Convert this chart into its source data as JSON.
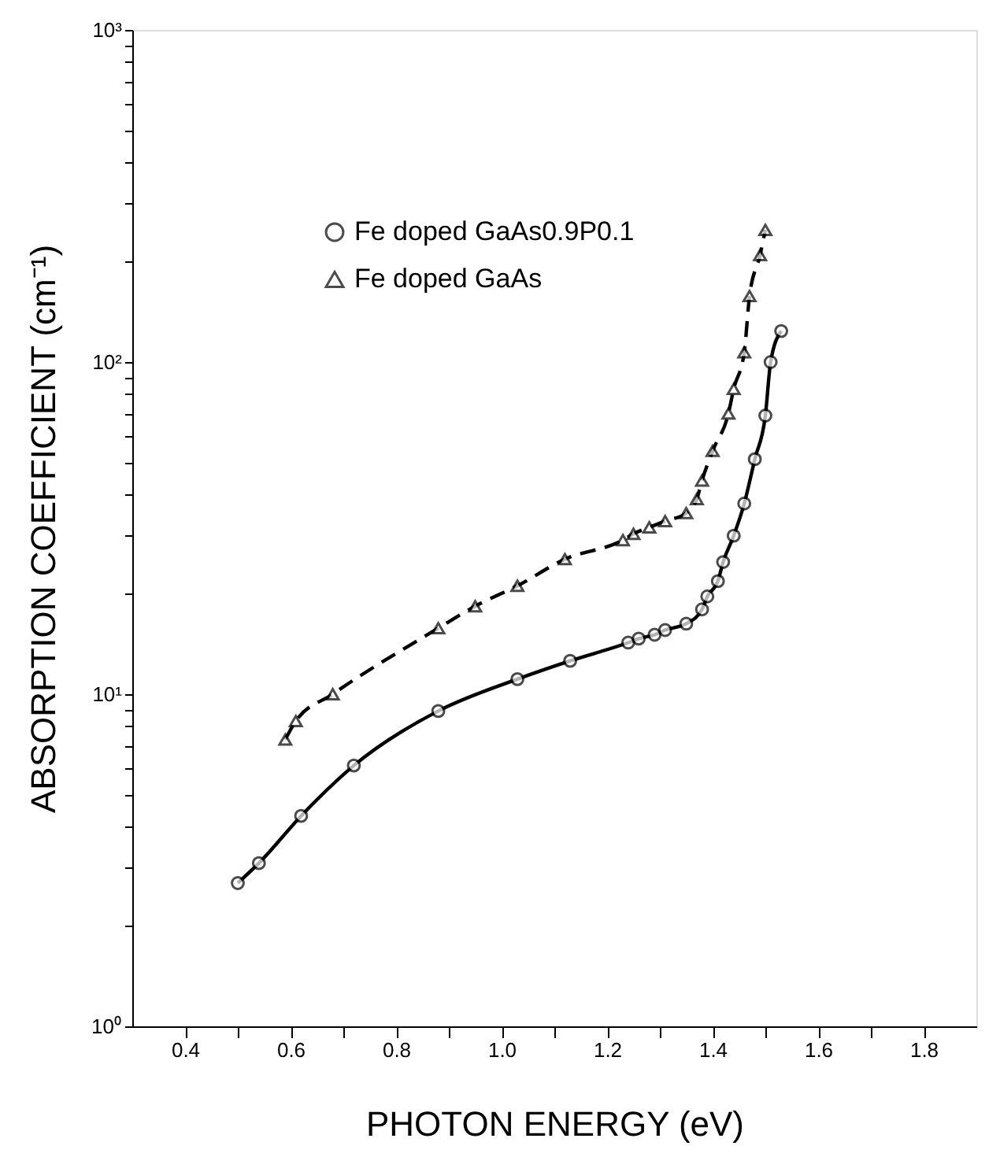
{
  "chart_data": {
    "type": "line",
    "xlabel": "PHOTON ENERGY  (eV)",
    "ylabel": "ABSORPTION COEFFICIENT  (cm⁻¹)",
    "log": "y",
    "xlim": [
      0.3,
      1.9
    ],
    "ylim": [
      1,
      1000
    ],
    "xticks": [
      0.4,
      {
        "value": 0.5,
        "label": null
      },
      0.6,
      {
        "value": 0.7,
        "label": null
      },
      0.8,
      {
        "value": 0.9,
        "label": null
      },
      {
        "value": 1.0,
        "label": "1.0"
      },
      {
        "value": 1.1,
        "label": null
      },
      1.2,
      {
        "value": 1.3,
        "label": null
      },
      1.4,
      {
        "value": 1.5,
        "label": null
      },
      1.6,
      {
        "value": 1.7,
        "label": null
      },
      1.8
    ],
    "yticks": [
      {
        "value": 1,
        "label": "10⁰"
      },
      {
        "value": 2,
        "label": null
      },
      {
        "value": 3,
        "label": null
      },
      {
        "value": 4,
        "label": null
      },
      {
        "value": 5,
        "label": null
      },
      {
        "value": 6,
        "label": null
      },
      {
        "value": 7,
        "label": null
      },
      {
        "value": 8,
        "label": null
      },
      {
        "value": 9,
        "label": null
      },
      {
        "value": 10,
        "label": "10¹"
      },
      {
        "value": 20,
        "label": null
      },
      {
        "value": 30,
        "label": null
      },
      {
        "value": 40,
        "label": null
      },
      {
        "value": 50,
        "label": null
      },
      {
        "value": 60,
        "label": null
      },
      {
        "value": 70,
        "label": null
      },
      {
        "value": 80,
        "label": null
      },
      {
        "value": 90,
        "label": null
      },
      {
        "value": 100,
        "label": "10²"
      },
      {
        "value": 200,
        "label": null
      },
      {
        "value": 300,
        "label": null
      },
      {
        "value": 400,
        "label": null
      },
      {
        "value": 500,
        "label": null
      },
      {
        "value": 600,
        "label": null
      },
      {
        "value": 700,
        "label": null
      },
      {
        "value": 800,
        "label": null
      },
      {
        "value": 900,
        "label": null
      },
      {
        "value": 1000,
        "label": "10³"
      }
    ],
    "grid": false,
    "legend": "top left",
    "series": [
      {
        "name": "Fe doped GaAs0.9P0.1",
        "color": "#000000",
        "marker": "circle",
        "line_style": "solid",
        "x": [
          0.5,
          0.54,
          0.62,
          0.72,
          0.88,
          1.03,
          1.13,
          1.24,
          1.26,
          1.29,
          1.31,
          1.35,
          1.38,
          1.39,
          1.41,
          1.42,
          1.44,
          1.46,
          1.48,
          1.5,
          1.51,
          1.53
        ],
        "values": [
          2.7,
          3.1,
          4.3,
          6.1,
          8.9,
          11.1,
          12.6,
          14.3,
          14.7,
          15.1,
          15.6,
          16.3,
          18,
          19.7,
          21.9,
          25,
          30,
          37.5,
          51,
          69,
          100,
          124
        ]
      },
      {
        "name": "Fe doped GaAs",
        "color": "#000000",
        "marker": "triangle",
        "line_style": "dashed",
        "x": [
          0.59,
          0.61,
          0.68,
          0.88,
          0.95,
          1.03,
          1.12,
          1.23,
          1.25,
          1.28,
          1.31,
          1.35,
          1.37,
          1.38,
          1.4,
          1.43,
          1.44,
          1.46,
          1.47,
          1.49,
          1.5
        ],
        "values": [
          7.3,
          8.3,
          10,
          15.8,
          18.4,
          21.2,
          25.5,
          29.1,
          30.4,
          31.8,
          33.2,
          35.1,
          38.7,
          44,
          54,
          70,
          83,
          107,
          158,
          210,
          250
        ]
      }
    ]
  }
}
